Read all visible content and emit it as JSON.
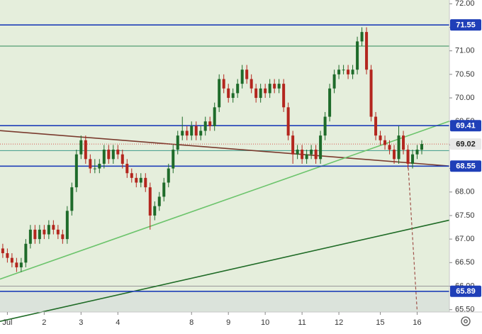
{
  "chart_data": {
    "type": "candlestick",
    "xlim": [
      -0.6,
      97
    ],
    "ylim": [
      65.45,
      72.08
    ],
    "xticks": [
      {
        "value": 1,
        "label": "Jul"
      },
      {
        "value": 9,
        "label": "2"
      },
      {
        "value": 17,
        "label": "3"
      },
      {
        "value": 25,
        "label": "4"
      },
      {
        "value": 41,
        "label": "8"
      },
      {
        "value": 49,
        "label": "9"
      },
      {
        "value": 57,
        "label": "10"
      },
      {
        "value": 65,
        "label": "11"
      },
      {
        "value": 73,
        "label": "12"
      },
      {
        "value": 82,
        "label": "15"
      },
      {
        "value": 90,
        "label": "16"
      }
    ],
    "yticks": [
      {
        "value": 65.5,
        "label": "65.50"
      },
      {
        "value": 66,
        "label": "66.00"
      },
      {
        "value": 66.5,
        "label": "66.50"
      },
      {
        "value": 67,
        "label": "67.00"
      },
      {
        "value": 67.5,
        "label": "67.50"
      },
      {
        "value": 68,
        "label": "68.00"
      },
      {
        "value": 68.5,
        "label": "68.50"
      },
      {
        "value": 69,
        "label": "69.00"
      },
      {
        "value": 69.5,
        "label": "69.50"
      },
      {
        "value": 70,
        "label": "70.00"
      },
      {
        "value": 70.5,
        "label": "70.50"
      },
      {
        "value": 71,
        "label": "71.00"
      },
      {
        "value": 71.5,
        "label": "71.50"
      },
      {
        "value": 72,
        "label": "72.00"
      }
    ],
    "up_color": "#1e6b2a",
    "down_color": "#b3261e",
    "candles": [
      [
        66.8,
        66.9,
        66.6,
        66.7
      ],
      [
        66.7,
        66.8,
        66.5,
        66.6
      ],
      [
        66.6,
        66.7,
        66.4,
        66.5
      ],
      [
        66.5,
        66.6,
        66.3,
        66.4
      ],
      [
        66.4,
        66.6,
        66.3,
        66.5
      ],
      [
        66.5,
        67.0,
        66.4,
        66.9
      ],
      [
        66.9,
        67.3,
        66.8,
        67.2
      ],
      [
        67.2,
        67.3,
        66.9,
        67.0
      ],
      [
        67.0,
        67.3,
        66.9,
        67.2
      ],
      [
        67.2,
        67.3,
        67.0,
        67.1
      ],
      [
        67.1,
        67.4,
        67.0,
        67.3
      ],
      [
        67.3,
        67.4,
        67.1,
        67.2
      ],
      [
        67.2,
        67.3,
        67.0,
        67.1
      ],
      [
        67.1,
        67.2,
        66.9,
        67.0
      ],
      [
        67.0,
        67.7,
        66.9,
        67.6
      ],
      [
        67.6,
        68.2,
        67.5,
        68.1
      ],
      [
        68.1,
        68.9,
        68.0,
        68.8
      ],
      [
        68.8,
        69.2,
        68.7,
        69.1
      ],
      [
        69.1,
        69.2,
        68.6,
        68.7
      ],
      [
        68.7,
        68.8,
        68.4,
        68.5
      ],
      [
        68.5,
        68.7,
        68.4,
        68.5
      ],
      [
        68.5,
        68.7,
        68.4,
        68.6
      ],
      [
        68.6,
        69.0,
        68.5,
        68.9
      ],
      [
        68.9,
        69.0,
        68.6,
        68.7
      ],
      [
        68.7,
        69.0,
        68.6,
        68.9
      ],
      [
        68.9,
        69.0,
        68.7,
        68.8
      ],
      [
        68.8,
        68.9,
        68.5,
        68.6
      ],
      [
        68.6,
        68.7,
        68.3,
        68.4
      ],
      [
        68.4,
        68.5,
        68.2,
        68.3
      ],
      [
        68.3,
        68.4,
        68.1,
        68.2
      ],
      [
        68.2,
        68.4,
        68.1,
        68.3
      ],
      [
        68.3,
        68.4,
        68.0,
        68.1
      ],
      [
        68.1,
        68.2,
        67.2,
        67.5
      ],
      [
        67.5,
        67.8,
        67.4,
        67.7
      ],
      [
        67.7,
        68.0,
        67.6,
        67.9
      ],
      [
        67.9,
        68.3,
        67.8,
        68.2
      ],
      [
        68.2,
        68.6,
        68.1,
        68.5
      ],
      [
        68.5,
        69.0,
        68.4,
        68.9
      ],
      [
        68.9,
        69.3,
        68.8,
        69.2
      ],
      [
        69.2,
        69.6,
        69.1,
        69.3
      ],
      [
        69.3,
        69.4,
        69.1,
        69.2
      ],
      [
        69.2,
        69.5,
        69.1,
        69.4
      ],
      [
        69.4,
        69.5,
        69.1,
        69.2
      ],
      [
        69.2,
        69.4,
        69.1,
        69.3
      ],
      [
        69.3,
        69.6,
        69.2,
        69.5
      ],
      [
        69.5,
        69.6,
        69.3,
        69.4
      ],
      [
        69.4,
        69.9,
        69.3,
        69.8
      ],
      [
        69.8,
        70.5,
        69.7,
        70.4
      ],
      [
        70.4,
        70.5,
        70.1,
        70.2
      ],
      [
        70.2,
        70.3,
        69.9,
        70.0
      ],
      [
        70.0,
        70.2,
        69.9,
        70.1
      ],
      [
        70.1,
        70.4,
        70.0,
        70.3
      ],
      [
        70.3,
        70.7,
        70.2,
        70.6
      ],
      [
        70.6,
        70.7,
        70.3,
        70.4
      ],
      [
        70.4,
        70.5,
        70.1,
        70.2
      ],
      [
        70.2,
        70.3,
        69.9,
        70.0
      ],
      [
        70.0,
        70.3,
        69.9,
        70.2
      ],
      [
        70.2,
        70.3,
        70.0,
        70.1
      ],
      [
        70.1,
        70.4,
        70.0,
        70.3
      ],
      [
        70.3,
        70.4,
        70.1,
        70.2
      ],
      [
        70.2,
        70.4,
        70.1,
        70.3
      ],
      [
        70.3,
        70.4,
        69.7,
        69.8
      ],
      [
        69.8,
        69.9,
        69.1,
        69.2
      ],
      [
        69.2,
        69.3,
        68.6,
        68.8
      ],
      [
        68.8,
        69.0,
        68.7,
        68.9
      ],
      [
        68.9,
        69.0,
        68.6,
        68.7
      ],
      [
        68.7,
        68.9,
        68.6,
        68.8
      ],
      [
        68.8,
        69.0,
        68.7,
        68.9
      ],
      [
        68.9,
        69.0,
        68.6,
        68.7
      ],
      [
        68.7,
        69.3,
        68.6,
        69.2
      ],
      [
        69.2,
        69.7,
        69.1,
        69.6
      ],
      [
        69.6,
        70.3,
        69.5,
        70.2
      ],
      [
        70.2,
        70.6,
        70.1,
        70.5
      ],
      [
        70.5,
        70.7,
        70.4,
        70.6
      ],
      [
        70.6,
        70.7,
        70.5,
        70.6
      ],
      [
        70.6,
        70.7,
        70.4,
        70.5
      ],
      [
        70.5,
        70.7,
        70.4,
        70.6
      ],
      [
        70.6,
        71.3,
        70.5,
        71.2
      ],
      [
        71.2,
        71.5,
        71.1,
        71.4
      ],
      [
        71.4,
        71.5,
        70.5,
        70.6
      ],
      [
        70.6,
        70.7,
        69.5,
        69.6
      ],
      [
        69.6,
        69.7,
        69.1,
        69.2
      ],
      [
        69.2,
        69.3,
        69.0,
        69.1
      ],
      [
        69.1,
        69.2,
        68.9,
        69.0
      ],
      [
        69.0,
        69.1,
        68.8,
        68.9
      ],
      [
        68.9,
        69.0,
        68.6,
        68.7
      ],
      [
        68.7,
        69.4,
        68.6,
        69.2
      ],
      [
        69.2,
        69.3,
        68.8,
        68.9
      ],
      [
        68.9,
        69.0,
        68.5,
        68.6
      ],
      [
        68.6,
        68.9,
        68.5,
        68.8
      ],
      [
        68.8,
        69.0,
        68.7,
        68.9
      ],
      [
        68.9,
        69.1,
        68.8,
        69.02
      ]
    ],
    "last_price": {
      "value": 69.02,
      "label": "69.02",
      "color": "#d9534f"
    },
    "levels": [
      {
        "value": 71.55,
        "label": "71.55",
        "color": "#1f3fb8"
      },
      {
        "value": 69.41,
        "label": "69.41",
        "color": "#1f3fb8"
      },
      {
        "value": 68.55,
        "label": "68.55",
        "color": "#1f3fb8"
      },
      {
        "value": 65.89,
        "label": "65.89",
        "color": "#1f3fb8"
      }
    ],
    "thin_lines": [
      {
        "value": 71.1,
        "color": "#2e8b57"
      },
      {
        "value": 68.88,
        "color": "#3c9a8a"
      },
      {
        "value": 66.0,
        "color": "#999999"
      }
    ],
    "trend_lines": [
      {
        "points": [
          [
            0,
            69.3
          ],
          [
            96,
            68.56
          ]
        ],
        "color": "#7a3b2e",
        "dashed": false
      },
      {
        "points": [
          [
            0,
            66.17
          ],
          [
            96,
            69.47
          ]
        ],
        "color": "#6cc46c",
        "dashed": false
      },
      {
        "points": [
          [
            8,
            65.44
          ],
          [
            96,
            67.38
          ]
        ],
        "color": "#1f6b26",
        "dashed": false
      },
      {
        "points": [
          [
            88,
            68.62
          ],
          [
            90,
            65.46
          ]
        ],
        "color": "#a0524a",
        "dashed": true
      }
    ]
  }
}
